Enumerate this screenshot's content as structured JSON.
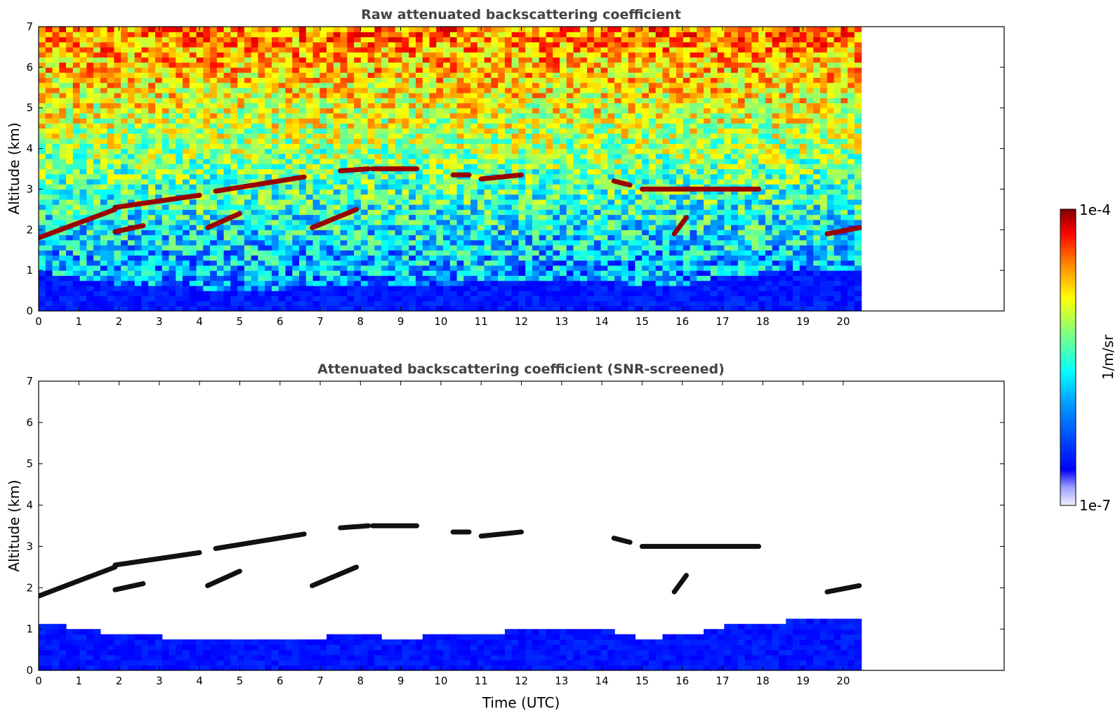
{
  "chart_data": [
    {
      "type": "heatmap",
      "title": "Raw attenuated backscattering coefficient",
      "xlabel": "",
      "ylabel": "Altitude (km)",
      "xlim": [
        0,
        24
      ],
      "ylim": [
        0,
        7
      ],
      "x_ticks": [
        0,
        1,
        2,
        3,
        4,
        5,
        6,
        7,
        8,
        9,
        10,
        11,
        12,
        13,
        14,
        15,
        16,
        17,
        18,
        19,
        20
      ],
      "y_ticks": [
        0,
        1,
        2,
        3,
        4,
        5,
        6,
        7
      ],
      "data_extent_x": [
        0,
        20.45
      ],
      "screened": false,
      "colorbar": {
        "min": "1e-7",
        "max": "1e-4",
        "label": "1/m/sr",
        "scale": "log"
      },
      "cloud_layers": [
        {
          "x_start": 0.0,
          "x_end": 1.9,
          "alt_start": 1.8,
          "alt_end": 2.5
        },
        {
          "x_start": 1.9,
          "x_end": 4.0,
          "alt_start": 2.55,
          "alt_end": 2.85
        },
        {
          "x_start": 4.4,
          "x_end": 6.6,
          "alt_start": 2.95,
          "alt_end": 3.3
        },
        {
          "x_start": 7.5,
          "x_end": 8.2,
          "alt_start": 3.45,
          "alt_end": 3.5
        },
        {
          "x_start": 8.3,
          "x_end": 9.4,
          "alt_start": 3.5,
          "alt_end": 3.5
        },
        {
          "x_start": 10.3,
          "x_end": 10.7,
          "alt_start": 3.35,
          "alt_end": 3.35
        },
        {
          "x_start": 11.0,
          "x_end": 12.0,
          "alt_start": 3.25,
          "alt_end": 3.35
        },
        {
          "x_start": 14.3,
          "x_end": 14.7,
          "alt_start": 3.2,
          "alt_end": 3.1
        },
        {
          "x_start": 15.0,
          "x_end": 17.9,
          "alt_start": 3.0,
          "alt_end": 3.0
        },
        {
          "x_start": 1.9,
          "x_end": 2.6,
          "alt_start": 1.95,
          "alt_end": 2.1
        },
        {
          "x_start": 4.2,
          "x_end": 5.0,
          "alt_start": 2.05,
          "alt_end": 2.4
        },
        {
          "x_start": 6.8,
          "x_end": 7.9,
          "alt_start": 2.05,
          "alt_end": 2.5
        },
        {
          "x_start": 15.8,
          "x_end": 16.1,
          "alt_start": 1.9,
          "alt_end": 2.3
        },
        {
          "x_start": 19.6,
          "x_end": 20.4,
          "alt_start": 1.9,
          "alt_end": 2.05
        }
      ],
      "boundary_layer_top_km": [
        0.9,
        0.75,
        0.6,
        0.55,
        0.5,
        0.45,
        0.5,
        0.55,
        0.6,
        0.5,
        0.6,
        0.65,
        0.7,
        0.7,
        0.75,
        0.5,
        0.6,
        0.8,
        0.9,
        0.95,
        1.0
      ]
    },
    {
      "type": "heatmap",
      "title": "Attenuated backscattering coefficient (SNR-screened)",
      "xlabel": "Time (UTC)",
      "ylabel": "Altitude (km)",
      "xlim": [
        0,
        24
      ],
      "ylim": [
        0,
        7
      ],
      "x_ticks": [
        0,
        1,
        2,
        3,
        4,
        5,
        6,
        7,
        8,
        9,
        10,
        11,
        12,
        13,
        14,
        15,
        16,
        17,
        18,
        19,
        20
      ],
      "y_ticks": [
        0,
        1,
        2,
        3,
        4,
        5,
        6,
        7
      ],
      "data_extent_x": [
        0,
        20.45
      ],
      "screened": true,
      "colorbar": {
        "min": "1e-7",
        "max": "1e-4",
        "label": "1/m/sr",
        "scale": "log"
      }
    }
  ],
  "colorbar": {
    "top_label": "1e-4",
    "bottom_label": "1e-7",
    "unit_label": "1/m/sr",
    "colormap": "jet"
  }
}
